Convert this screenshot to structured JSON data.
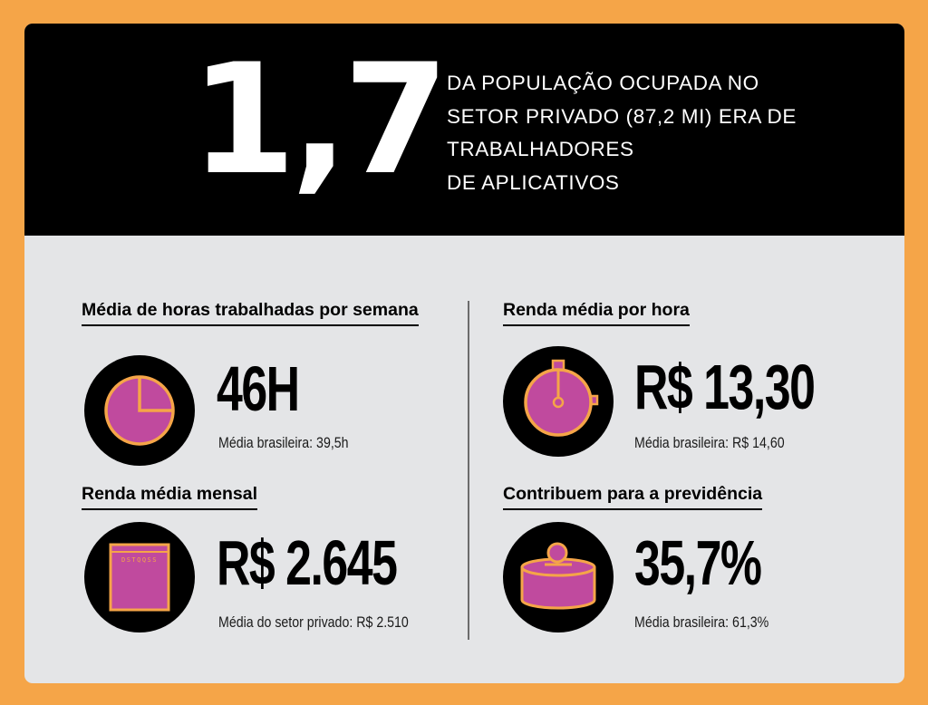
{
  "header": {
    "big_number": "1,7",
    "headline_lines": [
      "DA POPULAÇÃO OCUPADA NO",
      "SETOR PRIVADO (87,2 MI) ERA DE",
      "TRABALHADORES",
      "DE APLICATIVOS"
    ]
  },
  "stats": [
    {
      "title": "Média de horas trabalhadas por semana",
      "icon": "pie-clock-icon",
      "value": "46H",
      "sub": "Média brasileira: 39,5h"
    },
    {
      "title": "Renda média por hora",
      "icon": "stopwatch-icon",
      "value": "R$ 13,30",
      "sub": "Média brasileira: R$ 14,60"
    },
    {
      "title": "Renda média mensal",
      "icon": "calendar-icon",
      "icon_text": "DSTQQSS",
      "value": "R$ 2.645",
      "sub": "Média do setor privado: R$ 2.510"
    },
    {
      "title": "Contribuem para a previdência",
      "icon": "coin-box-icon",
      "value": "35,7%",
      "sub": "Média brasileira: 61,3%"
    }
  ],
  "colors": {
    "background": "#f5a548",
    "panel": "#e4e5e7",
    "header": "#000000",
    "icon_fill": "#c04a9e",
    "icon_stroke": "#f5a548"
  }
}
